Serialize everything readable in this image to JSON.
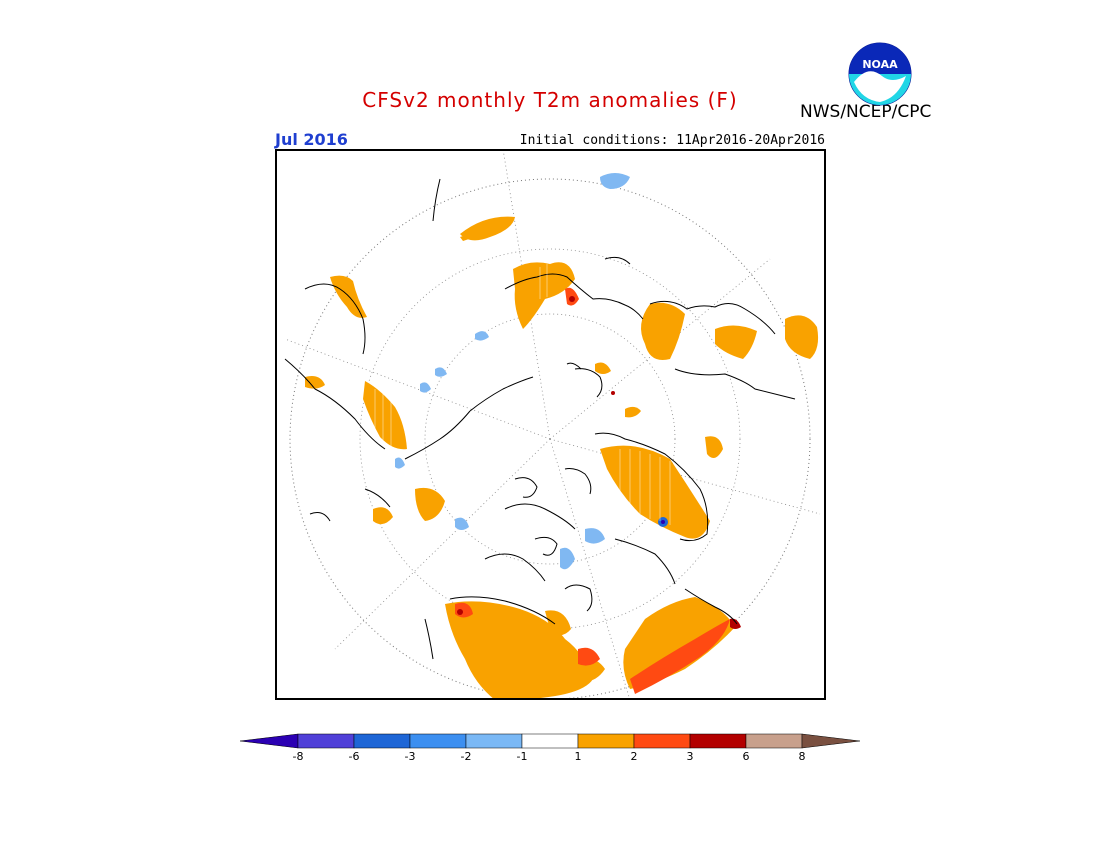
{
  "header": {
    "title": "CFSv2 monthly T2m anomalies (F)",
    "month": "Jul 2016",
    "initial_conditions": "Initial conditions: 11Apr2016-20Apr2016",
    "agency": "NWS/NCEP/CPC",
    "logo_text": "NOAA"
  },
  "colors": {
    "title": "#d40000",
    "month": "#1f3fd0",
    "warm1": "#f9a200",
    "warm2": "#ff4a12",
    "warm3": "#b30000",
    "cool1": "#80b8f2",
    "cool2": "#4a98f0",
    "cool3": "#1f66d6"
  },
  "legend": {
    "bins": [
      {
        "color": "#2b00b3"
      },
      {
        "color": "#5040d8"
      },
      {
        "color": "#1e66d6"
      },
      {
        "color": "#3c8ff0"
      },
      {
        "color": "#7ab8f5"
      },
      {
        "color": "#ffffff"
      },
      {
        "color": "#f9a200"
      },
      {
        "color": "#ff4a12"
      },
      {
        "color": "#b30000"
      },
      {
        "color": "#c8a08c"
      },
      {
        "color": "#7a5040"
      }
    ],
    "labels": [
      "-8",
      "-6",
      "-3",
      "-2",
      "-1",
      "1",
      "2",
      "3",
      "6",
      "8"
    ]
  }
}
